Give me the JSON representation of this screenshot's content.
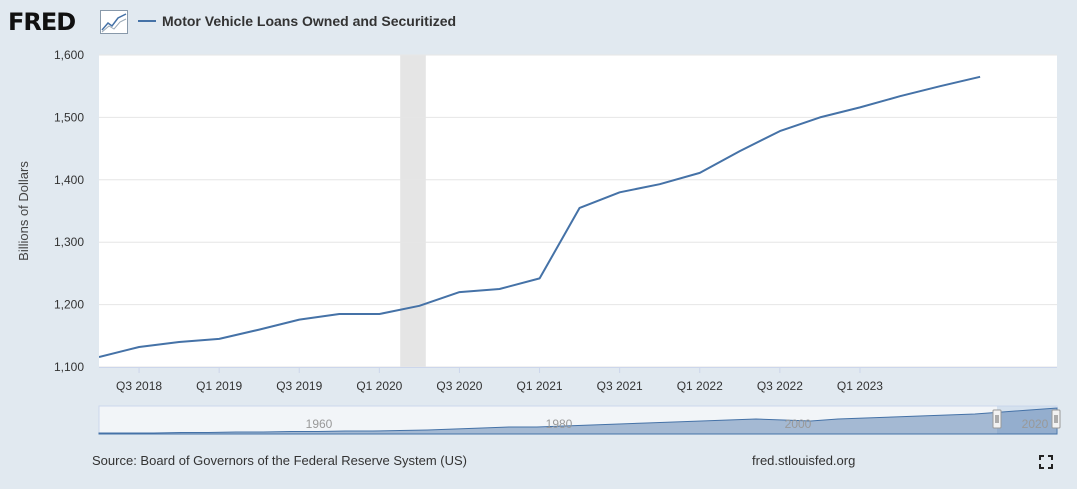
{
  "header": {
    "logo_text": "FRED",
    "legend_label": "Motor Vehicle Loans Owned and Securitized"
  },
  "footer": {
    "source": "Source: Board of Governors of the Federal Reserve System (US)",
    "site": "fred.stlouisfed.org"
  },
  "colors": {
    "series": "#4572a7",
    "recession": "#e5e5e5",
    "background": "#e1e9f0"
  },
  "chart_data": {
    "type": "line",
    "ylabel": "Billions of Dollars",
    "ylim": [
      1100,
      1600
    ],
    "yticks": [
      1100,
      1200,
      1300,
      1400,
      1500,
      1600
    ],
    "ytick_labels": [
      "1,100",
      "1,200",
      "1,300",
      "1,400",
      "1,500",
      "1,600"
    ],
    "xlim": [
      2018.0,
      2023.98
    ],
    "xticks": [
      2018.25,
      2018.75,
      2019.25,
      2019.75,
      2020.25,
      2020.75,
      2021.25,
      2021.75,
      2022.25,
      2022.75
    ],
    "xtick_labels": [
      "Q3 2018",
      "Q1 2019",
      "Q3 2019",
      "Q1 2020",
      "Q3 2020",
      "Q1 2021",
      "Q3 2021",
      "Q1 2022",
      "Q3 2022",
      "Q1 2023"
    ],
    "recession": [
      2019.88,
      2020.04
    ],
    "series": [
      {
        "name": "Motor Vehicle Loans Owned and Securitized",
        "x": [
          2018.0,
          2018.25,
          2018.5,
          2018.75,
          2019.0,
          2019.25,
          2019.5,
          2019.75,
          2020.0,
          2020.25,
          2020.5,
          2020.75,
          2021.0,
          2021.25,
          2021.5,
          2021.75,
          2022.0,
          2022.25,
          2022.5,
          2022.75,
          2023.0,
          2023.25,
          2023.5
        ],
        "y": [
          1116,
          1132,
          1140,
          1145,
          1160,
          1176,
          1185,
          1185,
          1198,
          1220,
          1225,
          1242,
          1355,
          1380,
          1393,
          1411,
          1446,
          1478,
          1500,
          1516,
          1534,
          1550,
          1565
        ]
      }
    ],
    "navigator": {
      "labels": [
        "1960",
        "1980",
        "2000",
        "2020"
      ]
    }
  }
}
